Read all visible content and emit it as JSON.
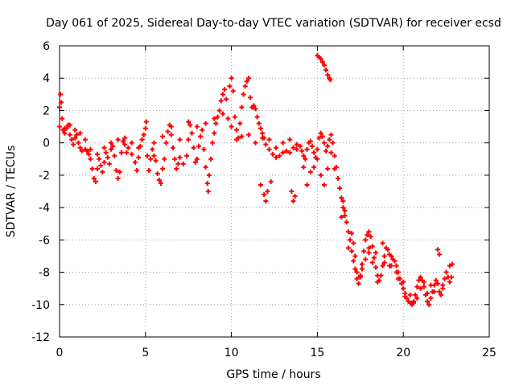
{
  "chart_data": {
    "type": "scatter",
    "title": "Day 061 of 2025, Sidereal Day-to-day VTEC variation (SDTVAR) for receiver ecsd",
    "xlabel": "GPS time / hours",
    "ylabel": "SDTVAR / TECUs",
    "xlim": [
      0,
      25
    ],
    "ylim": [
      -12,
      6
    ],
    "xticks": [
      0,
      5,
      10,
      15,
      20,
      25
    ],
    "yticks": [
      -12,
      -10,
      -8,
      -6,
      -4,
      -2,
      0,
      2,
      4,
      6
    ],
    "grid": true,
    "marker": "plus",
    "series": [
      {
        "name": "SDTVAR",
        "color": "#ff0000",
        "points": [
          [
            0.0,
            1.0
          ],
          [
            0.0,
            2.2
          ],
          [
            0.05,
            3.0
          ],
          [
            0.1,
            2.5
          ],
          [
            0.15,
            1.5
          ],
          [
            0.2,
            0.8
          ],
          [
            0.3,
            0.6
          ],
          [
            0.4,
            0.9
          ],
          [
            0.5,
            1.1
          ],
          [
            0.6,
            0.5
          ],
          [
            0.7,
            0.2
          ],
          [
            0.8,
            -0.1
          ],
          [
            0.9,
            0.3
          ],
          [
            1.0,
            0.5
          ],
          [
            1.1,
            0.0
          ],
          [
            1.2,
            -0.3
          ],
          [
            1.3,
            -0.5
          ],
          [
            1.5,
            -0.4
          ],
          [
            1.6,
            -0.5
          ],
          [
            1.7,
            -0.7
          ],
          [
            1.8,
            -1.0
          ],
          [
            1.9,
            -1.6
          ],
          [
            2.0,
            -2.2
          ],
          [
            2.1,
            -2.4
          ],
          [
            2.2,
            -1.6
          ],
          [
            2.3,
            -1.0
          ],
          [
            2.4,
            -1.4
          ],
          [
            2.5,
            -1.8
          ],
          [
            2.6,
            -1.2
          ],
          [
            2.7,
            -0.6
          ],
          [
            2.8,
            -0.9
          ],
          [
            2.9,
            -1.3
          ],
          [
            3.0,
            -0.4
          ],
          [
            3.1,
            -0.2
          ],
          [
            3.2,
            -0.8
          ],
          [
            3.3,
            -1.7
          ],
          [
            3.4,
            -2.2
          ],
          [
            3.5,
            -1.8
          ],
          [
            3.6,
            -0.6
          ],
          [
            3.7,
            0.1
          ],
          [
            3.8,
            -0.1
          ],
          [
            3.9,
            -0.6
          ],
          [
            4.0,
            -0.3
          ],
          [
            4.2,
            -0.7
          ],
          [
            4.4,
            -1.2
          ],
          [
            4.5,
            -1.7
          ],
          [
            4.6,
            -0.9
          ],
          [
            4.7,
            -0.2
          ],
          [
            4.8,
            0.2
          ],
          [
            4.9,
            0.5
          ],
          [
            5.0,
            0.9
          ],
          [
            5.05,
            1.3
          ],
          [
            5.1,
            -0.8
          ],
          [
            5.2,
            -1.7
          ],
          [
            5.3,
            -1.0
          ],
          [
            5.4,
            -0.4
          ],
          [
            5.5,
            -0.8
          ],
          [
            5.6,
            -1.1
          ],
          [
            5.7,
            -1.9
          ],
          [
            5.8,
            -2.3
          ],
          [
            5.9,
            -2.5
          ],
          [
            6.0,
            -1.6
          ],
          [
            6.1,
            -1.0
          ],
          [
            6.2,
            0.0
          ],
          [
            6.3,
            0.7
          ],
          [
            6.4,
            1.1
          ],
          [
            6.5,
            0.5
          ],
          [
            6.6,
            -0.3
          ],
          [
            6.7,
            -1.0
          ],
          [
            6.8,
            -1.6
          ],
          [
            6.9,
            -1.3
          ],
          [
            7.0,
            -0.9
          ],
          [
            7.2,
            -1.3
          ],
          [
            7.4,
            -0.8
          ],
          [
            7.5,
            0.2
          ],
          [
            7.6,
            1.1
          ],
          [
            7.7,
            0.6
          ],
          [
            7.8,
            -0.3
          ],
          [
            7.9,
            -1.2
          ],
          [
            8.0,
            -1.0
          ],
          [
            8.1,
            -0.2
          ],
          [
            8.2,
            0.4
          ],
          [
            8.3,
            0.8
          ],
          [
            8.4,
            -0.4
          ],
          [
            8.5,
            -1.5
          ],
          [
            8.6,
            -2.5
          ],
          [
            8.65,
            -3.0
          ],
          [
            8.7,
            -2.0
          ],
          [
            8.8,
            -1.0
          ],
          [
            8.9,
            0.0
          ],
          [
            9.0,
            0.6
          ],
          [
            9.1,
            1.2
          ],
          [
            9.2,
            1.6
          ],
          [
            9.3,
            2.0
          ],
          [
            9.4,
            2.6
          ],
          [
            9.5,
            3.0
          ],
          [
            9.6,
            3.3
          ],
          [
            9.7,
            2.7
          ],
          [
            9.8,
            1.5
          ],
          [
            9.9,
            3.5
          ],
          [
            10.0,
            4.0
          ],
          [
            10.1,
            3.2
          ],
          [
            10.2,
            1.6
          ],
          [
            10.3,
            0.8
          ],
          [
            10.4,
            0.3
          ],
          [
            10.5,
            1.2
          ],
          [
            10.6,
            2.2
          ],
          [
            10.7,
            3.0
          ],
          [
            10.8,
            3.5
          ],
          [
            10.9,
            3.8
          ],
          [
            11.0,
            4.0
          ],
          [
            11.1,
            2.8
          ],
          [
            11.2,
            2.2
          ],
          [
            11.3,
            2.3
          ],
          [
            11.4,
            2.1
          ],
          [
            11.5,
            1.6
          ],
          [
            11.6,
            1.2
          ],
          [
            11.7,
            0.9
          ],
          [
            11.8,
            0.6
          ],
          [
            11.9,
            0.3
          ],
          [
            12.0,
            -0.1
          ],
          [
            12.2,
            -0.4
          ],
          [
            12.4,
            -0.7
          ],
          [
            12.6,
            -0.9
          ],
          [
            12.8,
            -0.8
          ],
          [
            13.0,
            -0.6
          ],
          [
            13.2,
            -0.5
          ],
          [
            13.4,
            -0.6
          ],
          [
            13.6,
            -0.3
          ],
          [
            13.8,
            -0.1
          ],
          [
            14.0,
            -0.2
          ],
          [
            14.1,
            -0.5
          ],
          [
            14.2,
            -0.8
          ],
          [
            14.3,
            -1.0
          ],
          [
            14.4,
            -0.4
          ],
          [
            14.5,
            0.0
          ],
          [
            14.6,
            0.1
          ],
          [
            14.7,
            -0.2
          ],
          [
            14.8,
            -0.6
          ],
          [
            14.9,
            -0.9
          ],
          [
            15.0,
            -0.4
          ],
          [
            15.1,
            0.3
          ],
          [
            15.2,
            0.6
          ],
          [
            15.3,
            0.4
          ],
          [
            15.4,
            0.0
          ],
          [
            15.5,
            -0.5
          ],
          [
            15.6,
            -0.2
          ],
          [
            15.7,
            0.2
          ],
          [
            15.8,
            0.5
          ],
          [
            15.9,
            0.0
          ],
          [
            16.0,
            -0.8
          ],
          [
            16.1,
            -1.5
          ],
          [
            16.2,
            -2.2
          ],
          [
            16.3,
            -2.8
          ],
          [
            16.4,
            -3.4
          ],
          [
            16.5,
            -4.0
          ],
          [
            16.6,
            -4.5
          ],
          [
            16.7,
            -4.9
          ],
          [
            16.8,
            -5.5
          ],
          [
            16.9,
            -6.0
          ],
          [
            17.0,
            -6.7
          ],
          [
            17.1,
            -7.3
          ],
          [
            17.2,
            -7.8
          ],
          [
            17.3,
            -8.4
          ],
          [
            17.4,
            -8.7
          ],
          [
            17.5,
            -8.3
          ],
          [
            17.6,
            -7.5
          ],
          [
            17.7,
            -6.7
          ],
          [
            17.8,
            -6.0
          ],
          [
            17.9,
            -5.7
          ],
          [
            18.0,
            -5.5
          ],
          [
            18.1,
            -5.8
          ],
          [
            18.2,
            -6.4
          ],
          [
            18.3,
            -7.1
          ],
          [
            18.4,
            -7.7
          ],
          [
            18.5,
            -8.2
          ],
          [
            18.6,
            -8.5
          ],
          [
            18.7,
            -8.2
          ],
          [
            18.8,
            -7.6
          ],
          [
            18.9,
            -7.0
          ],
          [
            19.0,
            -6.5
          ],
          [
            19.1,
            -6.6
          ],
          [
            19.2,
            -6.9
          ],
          [
            19.3,
            -7.0
          ],
          [
            19.4,
            -7.2
          ],
          [
            19.5,
            -7.3
          ],
          [
            19.6,
            -7.6
          ],
          [
            19.7,
            -8.0
          ],
          [
            19.8,
            -8.4
          ],
          [
            19.9,
            -8.7
          ],
          [
            20.0,
            -9.0
          ],
          [
            20.1,
            -9.3
          ],
          [
            20.2,
            -9.6
          ],
          [
            20.3,
            -9.8
          ],
          [
            20.4,
            -9.9
          ],
          [
            20.5,
            -10.0
          ],
          [
            20.6,
            -9.8
          ],
          [
            20.7,
            -9.4
          ],
          [
            20.8,
            -8.9
          ],
          [
            20.9,
            -8.5
          ],
          [
            21.0,
            -8.3
          ],
          [
            21.1,
            -8.5
          ],
          [
            21.2,
            -8.9
          ],
          [
            21.3,
            -9.4
          ],
          [
            21.4,
            -9.8
          ],
          [
            21.5,
            -10.0
          ],
          [
            21.6,
            -9.6
          ],
          [
            21.7,
            -9.2
          ],
          [
            21.8,
            -8.8
          ],
          [
            21.9,
            -8.5
          ],
          [
            22.0,
            -8.7
          ],
          [
            22.1,
            -9.2
          ],
          [
            22.2,
            -9.4
          ],
          [
            22.3,
            -9.0
          ],
          [
            22.4,
            -8.4
          ],
          [
            22.5,
            -8.0
          ],
          [
            22.6,
            -8.3
          ],
          [
            22.7,
            -8.6
          ],
          [
            22.8,
            -8.3
          ],
          [
            22.85,
            -7.5
          ],
          [
            15.0,
            5.4
          ],
          [
            15.1,
            5.3
          ],
          [
            15.2,
            5.2
          ],
          [
            15.3,
            5.0
          ],
          [
            15.4,
            4.8
          ],
          [
            15.5,
            4.5
          ],
          [
            15.6,
            4.2
          ],
          [
            15.7,
            4.0
          ],
          [
            15.75,
            3.9
          ],
          [
            0.3,
            0.9
          ],
          [
            0.6,
            1.1
          ],
          [
            0.9,
            0.8
          ],
          [
            1.2,
            0.6
          ],
          [
            1.5,
            0.2
          ],
          [
            1.8,
            -0.4
          ],
          [
            2.2,
            -0.7
          ],
          [
            2.6,
            -0.3
          ],
          [
            3.0,
            0.0
          ],
          [
            3.4,
            0.2
          ],
          [
            3.8,
            0.3
          ],
          [
            4.2,
            0.0
          ],
          [
            4.6,
            -0.3
          ],
          [
            5.5,
            0.0
          ],
          [
            6.0,
            0.4
          ],
          [
            6.5,
            1.0
          ],
          [
            7.0,
            0.2
          ],
          [
            7.5,
            1.3
          ],
          [
            8.0,
            1.0
          ],
          [
            8.5,
            1.2
          ],
          [
            9.0,
            1.5
          ],
          [
            9.5,
            1.8
          ],
          [
            10.0,
            1.0
          ],
          [
            10.3,
            0.2
          ],
          [
            10.6,
            0.4
          ],
          [
            11.0,
            0.5
          ],
          [
            11.4,
            0.0
          ],
          [
            11.8,
            0.3
          ],
          [
            12.2,
            0.2
          ],
          [
            12.6,
            -0.3
          ],
          [
            13.0,
            0.0
          ],
          [
            13.4,
            0.2
          ],
          [
            13.8,
            -0.4
          ],
          [
            14.2,
            -1.5
          ],
          [
            14.4,
            -2.6
          ],
          [
            14.6,
            -1.8
          ],
          [
            14.8,
            -1.5
          ],
          [
            15.0,
            -1.0
          ],
          [
            15.2,
            -2.0
          ],
          [
            15.4,
            -2.6
          ],
          [
            15.6,
            -1.6
          ],
          [
            15.8,
            -0.6
          ],
          [
            16.0,
            -1.6
          ],
          [
            16.4,
            -4.6
          ],
          [
            16.8,
            -6.5
          ],
          [
            17.2,
            -7.0
          ],
          [
            17.6,
            -7.8
          ],
          [
            18.0,
            -6.5
          ],
          [
            18.4,
            -6.8
          ],
          [
            18.8,
            -6.2
          ],
          [
            19.2,
            -7.6
          ],
          [
            19.6,
            -8.0
          ],
          [
            20.0,
            -8.6
          ],
          [
            20.4,
            -9.4
          ],
          [
            20.8,
            -9.6
          ],
          [
            21.2,
            -8.6
          ],
          [
            21.6,
            -8.8
          ],
          [
            22.0,
            -6.6
          ],
          [
            22.1,
            -6.9
          ],
          [
            12.3,
            -2.4
          ],
          [
            12.1,
            -3.0
          ],
          [
            12.0,
            -3.6
          ],
          [
            11.9,
            -3.2
          ],
          [
            11.7,
            -2.6
          ],
          [
            13.5,
            -3.0
          ],
          [
            13.6,
            -3.6
          ],
          [
            13.7,
            -3.3
          ],
          [
            16.5,
            -3.6
          ],
          [
            16.6,
            -4.2
          ],
          [
            17.0,
            -5.6
          ],
          [
            17.1,
            -6.2
          ],
          [
            17.3,
            -8.0
          ],
          [
            17.5,
            -8.2
          ],
          [
            17.8,
            -7.2
          ],
          [
            18.0,
            -6.8
          ],
          [
            18.2,
            -7.4
          ],
          [
            18.5,
            -8.6
          ],
          [
            18.9,
            -7.4
          ],
          [
            19.3,
            -7.6
          ],
          [
            19.7,
            -8.4
          ],
          [
            20.1,
            -9.5
          ],
          [
            20.6,
            -9.9
          ],
          [
            21.0,
            -9.0
          ],
          [
            21.4,
            -9.3
          ],
          [
            21.8,
            -9.2
          ],
          [
            22.3,
            -8.8
          ],
          [
            22.7,
            -7.6
          ]
        ]
      }
    ]
  }
}
